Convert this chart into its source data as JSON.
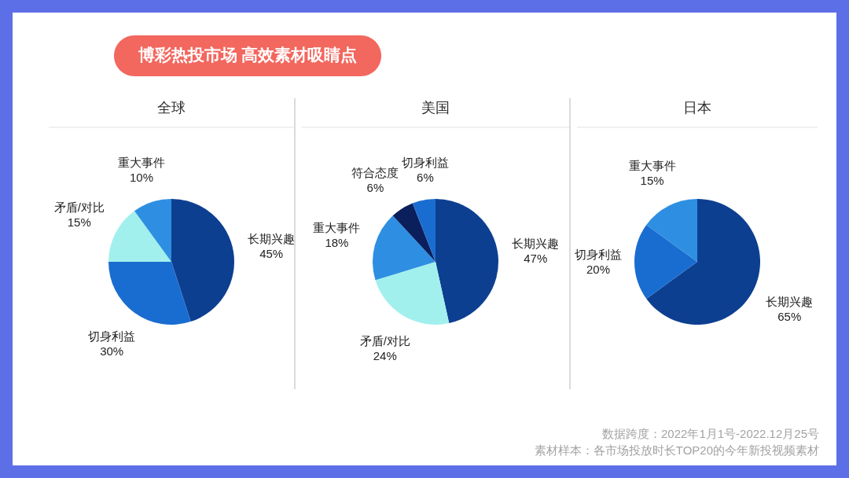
{
  "chart_data": [
    {
      "type": "other",
      "title": "博彩热投市场 高效素材吸睛点",
      "annotations": [
        "数据跨度：2022年1月1号-2022.12月25号",
        "素材样本：各市场投放时长TOP20的今年新投视频素材"
      ]
    },
    {
      "type": "pie",
      "title": "全球",
      "categories": [
        "长期兴趣",
        "切身利益",
        "矛盾/对比",
        "重大事件"
      ],
      "values": [
        45,
        30,
        15,
        10
      ],
      "colors": [
        "#0d3f91",
        "#1a6dd0",
        "#a2f0ee",
        "#2e8fe2"
      ],
      "value_labels": [
        "45%",
        "30%",
        "15%",
        "10%"
      ]
    },
    {
      "type": "pie",
      "title": "美国",
      "categories": [
        "长期兴趣",
        "矛盾/对比",
        "重大事件",
        "符合态度",
        "切身利益"
      ],
      "values": [
        47,
        24,
        18,
        6,
        6
      ],
      "colors": [
        "#0d3f91",
        "#a2f0ee",
        "#2e8fe2",
        "#0a1f5c",
        "#1a6dd0"
      ],
      "value_labels": [
        "47%",
        "24%",
        "18%",
        "6%",
        "6%"
      ]
    },
    {
      "type": "pie",
      "title": "日本",
      "categories": [
        "长期兴趣",
        "切身利益",
        "重大事件"
      ],
      "values": [
        65,
        20,
        15
      ],
      "colors": [
        "#0d3f91",
        "#1a6dd0",
        "#2e8fe2"
      ],
      "value_labels": [
        "65%",
        "20%",
        "15%"
      ]
    }
  ]
}
